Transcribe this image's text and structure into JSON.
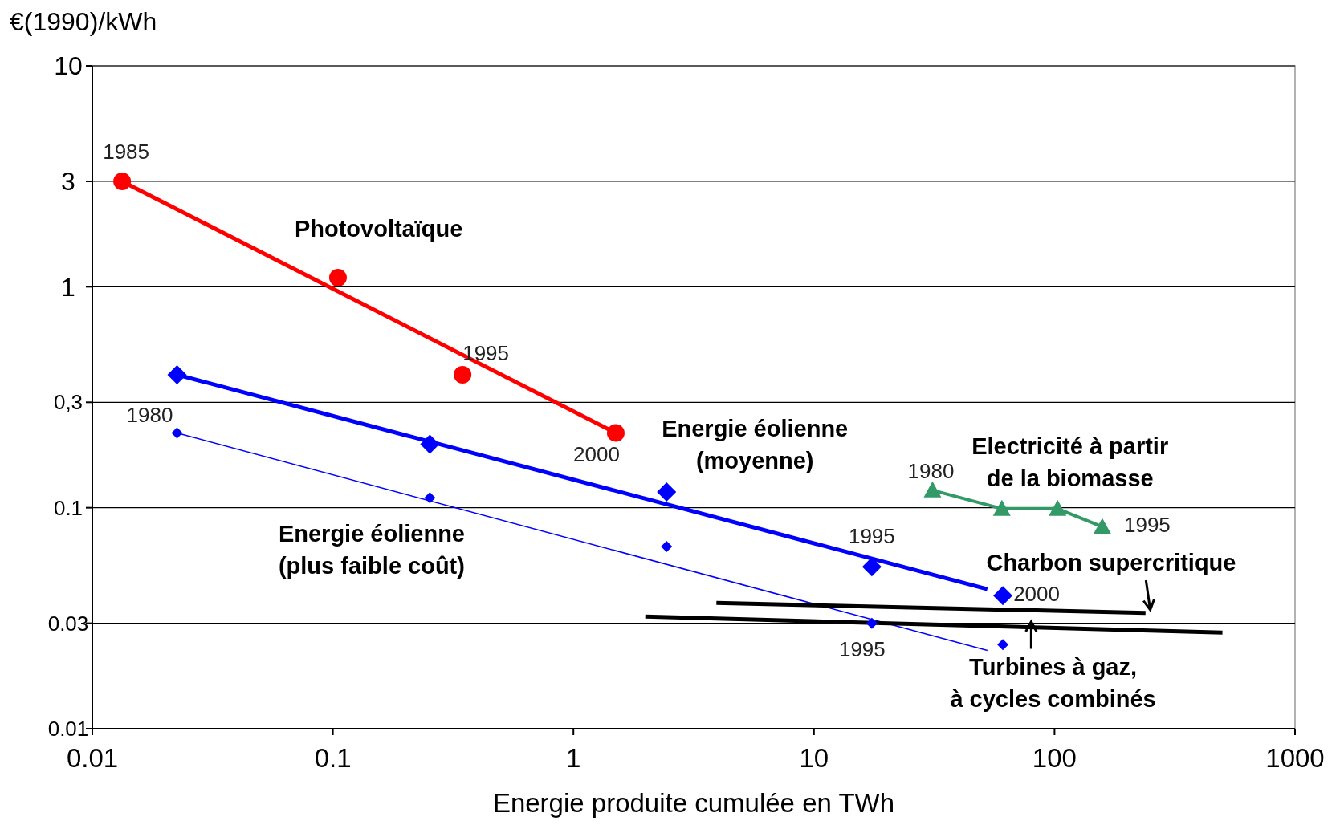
{
  "chart_data": {
    "type": "scatter",
    "ylabel": "€(1990)/kWh",
    "xlabel": "Energie produite cumulée en TWh",
    "log": "xy",
    "xlim": [
      0.01,
      1000
    ],
    "ylim": [
      0.01,
      10
    ],
    "xticks": [
      0.01,
      0.1,
      1,
      10,
      100,
      1000
    ],
    "yticks": [
      0.01,
      0.03,
      0.1,
      {
        "value": 0.3,
        "label": "0,3"
      },
      1,
      3,
      10
    ],
    "grid": "y",
    "series": [
      {
        "type": "scatter",
        "name": "Photovoltaïque",
        "color": "#ff0000",
        "marker": "circle",
        "x": [
          0.0133,
          0.105,
          0.346,
          1.5
        ],
        "values": [
          3,
          1.1,
          0.4,
          0.218
        ]
      },
      {
        "type": "line",
        "color": "#ff0000",
        "marker": "none",
        "x": [
          0.0133,
          1.5
        ],
        "values": [
          3,
          0.218
        ]
      },
      {
        "type": "scatter",
        "name": "Energie éolienne\n(moyenne)",
        "color": "#0000ff",
        "marker": "diamond",
        "x": [
          0.0225,
          0.253,
          2.44,
          17.4,
          61
        ],
        "values": [
          0.4,
          0.194,
          0.118,
          0.054,
          0.04
        ]
      },
      {
        "type": "line",
        "color": "#0000ff",
        "marker": "none",
        "x": [
          0.0225,
          52.6
        ],
        "values": [
          0.4,
          0.0428
        ]
      },
      {
        "type": "scatter",
        "name": "Energie éolienne\n(plus faible coût)",
        "color": "#0000ff",
        "marker": "diamond",
        "x": [
          0.0225,
          0.253,
          2.44,
          17.4,
          61
        ],
        "values": [
          0.218,
          0.111,
          0.0668,
          0.03,
          0.024
        ]
      },
      {
        "type": "line",
        "color": "#0000ff",
        "marker": "none",
        "x": [
          0.0225,
          52.6
        ],
        "values": [
          0.218,
          0.0226
        ]
      },
      {
        "type": "line",
        "name": "Electricité à partir\nde la biomasse",
        "color": "#339966",
        "marker": "triangle",
        "x": [
          31.1,
          60.4,
          103,
          158
        ],
        "values": [
          0.12,
          0.099,
          0.099,
          0.082
        ]
      },
      {
        "type": "line",
        "name": "Charbon supercritique",
        "color": "#000000",
        "marker": "none",
        "x": [
          3.93,
          239
        ],
        "values": [
          0.0371,
          0.0334
        ]
      },
      {
        "type": "line",
        "name": "Turbines à gaz,\nà cycles combinés",
        "color": "#000000",
        "marker": "none",
        "x": [
          1.99,
          499
        ],
        "values": [
          0.0322,
          0.0272
        ]
      }
    ],
    "annotations": [
      {
        "text": "1985",
        "x": 0.0133,
        "y": 3
      },
      {
        "text": "1995",
        "x": 0.346,
        "y": 0.4
      },
      {
        "text": "2000",
        "x": 1.5,
        "y": 0.218
      },
      {
        "text": "1980",
        "x": 0.0225,
        "y": 0.4
      },
      {
        "text": "1995",
        "x": 17.4,
        "y": 0.054
      },
      {
        "text": "2000",
        "x": 61,
        "y": 0.04
      },
      {
        "text": "1995",
        "x": 17.4,
        "y": 0.03
      },
      {
        "text": "1980",
        "x": 31.1,
        "y": 0.12
      },
      {
        "text": "1995",
        "x": 158,
        "y": 0.082
      }
    ]
  }
}
